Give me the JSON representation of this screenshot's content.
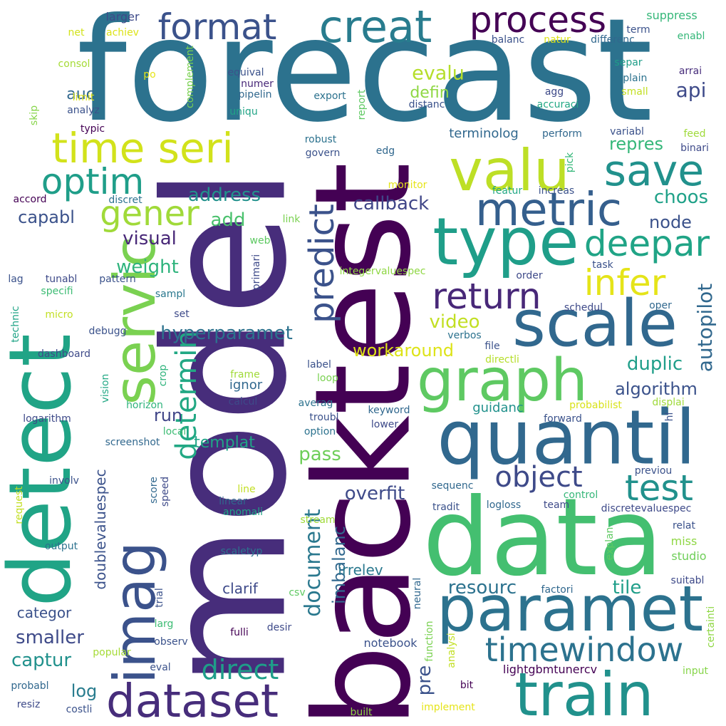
{
  "words": [
    {
      "text": "forecast",
      "color": "#2c728e"
    },
    {
      "text": "model",
      "color": "#472d7b"
    },
    {
      "text": "backtest",
      "color": "#440154"
    },
    {
      "text": "data",
      "color": "#44bf70"
    },
    {
      "text": "detect",
      "color": "#20a486"
    },
    {
      "text": "imag",
      "color": "#3b528b"
    },
    {
      "text": "servic",
      "color": "#7ad151"
    },
    {
      "text": "quantil",
      "color": "#31688e"
    },
    {
      "text": "paramet",
      "color": "#2c728e"
    },
    {
      "text": "type",
      "color": "#1f9e89"
    },
    {
      "text": "scale",
      "color": "#31688e"
    },
    {
      "text": "graph",
      "color": "#5ec962"
    },
    {
      "text": "train",
      "color": "#21918c"
    },
    {
      "text": "valu",
      "color": "#bddf26"
    },
    {
      "text": "metric",
      "color": "#355f8d"
    },
    {
      "text": "creat",
      "color": "#287c8e"
    },
    {
      "text": "time seri",
      "color": "#d2e21b"
    },
    {
      "text": "dataset",
      "color": "#472d7b"
    },
    {
      "text": "process",
      "color": "#440154"
    },
    {
      "text": "format",
      "color": "#3b528b"
    },
    {
      "text": "save",
      "color": "#21918c"
    },
    {
      "text": "optim",
      "color": "#1f9e89"
    },
    {
      "text": "gener",
      "color": "#a0da39"
    },
    {
      "text": "deepar",
      "color": "#20a486"
    },
    {
      "text": "timewindow",
      "color": "#2c728e"
    },
    {
      "text": "predict",
      "color": "#3b528b"
    },
    {
      "text": "determin",
      "color": "#22a884"
    },
    {
      "text": "infer",
      "color": "#e5e419"
    },
    {
      "text": "return",
      "color": "#482878"
    },
    {
      "text": "test",
      "color": "#21918c"
    },
    {
      "text": "object",
      "color": "#3e4a89"
    },
    {
      "text": "direct",
      "color": "#1f9e89"
    },
    {
      "text": "document",
      "color": "#2a788e"
    },
    {
      "text": "autopilot",
      "color": "#31688e"
    },
    {
      "text": "evalu",
      "color": "#b5de2b"
    },
    {
      "text": "api",
      "color": "#3e4a89"
    },
    {
      "text": "defin",
      "color": "#8fd744"
    },
    {
      "text": "auc",
      "color": "#31688e"
    },
    {
      "text": "repres",
      "color": "#35b779"
    },
    {
      "text": "choos",
      "color": "#1fa188"
    },
    {
      "text": "node",
      "color": "#3b528b"
    },
    {
      "text": "address",
      "color": "#21918c"
    },
    {
      "text": "capabl",
      "color": "#3b528b"
    },
    {
      "text": "add",
      "color": "#4ac16d"
    },
    {
      "text": "callback",
      "color": "#404688"
    },
    {
      "text": "visual",
      "color": "#482878"
    },
    {
      "text": "weight",
      "color": "#2eb37c"
    },
    {
      "text": "hyperparamet",
      "color": "#2c728e"
    },
    {
      "text": "video",
      "color": "#c2df23"
    },
    {
      "text": "workaround",
      "color": "#dde318"
    },
    {
      "text": "duplic",
      "color": "#1f9e89"
    },
    {
      "text": "algorithm",
      "color": "#3b528b"
    },
    {
      "text": "overfit",
      "color": "#3e4a89"
    },
    {
      "text": "imbalanc",
      "color": "#31688e"
    },
    {
      "text": "pass",
      "color": "#6ece58"
    },
    {
      "text": "resourc",
      "color": "#2c728e"
    },
    {
      "text": "tile",
      "color": "#1f9e89"
    },
    {
      "text": "pre",
      "color": "#3b528b"
    },
    {
      "text": "run",
      "color": "#404688"
    },
    {
      "text": "templat",
      "color": "#20a486"
    },
    {
      "text": "doublevaluespec",
      "color": "#3b528b"
    },
    {
      "text": "smaller",
      "color": "#3e4a89"
    },
    {
      "text": "captur",
      "color": "#21918c"
    },
    {
      "text": "log",
      "color": "#287c8e"
    },
    {
      "text": "categor",
      "color": "#3b528b"
    },
    {
      "text": "clarif",
      "color": "#3e4a89"
    },
    {
      "text": "irrelev",
      "color": "#2a788e"
    },
    {
      "text": "guidanc",
      "color": "#21918c"
    },
    {
      "text": "terminolog",
      "color": "#31688e"
    },
    {
      "text": "lightgbmtunercv",
      "color": "#440154"
    },
    {
      "text": "notebook",
      "color": "#3b528b"
    },
    {
      "text": "suppress",
      "color": "#35b779"
    },
    {
      "text": "larger",
      "color": "#3e4a89"
    },
    {
      "text": "net",
      "color": "#d2e21b"
    },
    {
      "text": "achiev",
      "color": "#dde318"
    },
    {
      "text": "consol",
      "color": "#a5db36"
    },
    {
      "text": "po",
      "color": "#e5e419"
    },
    {
      "text": "limit",
      "color": "#dde318"
    },
    {
      "text": "analyz",
      "color": "#3b528b"
    },
    {
      "text": "skip",
      "color": "#86d549"
    },
    {
      "text": "typic",
      "color": "#440154"
    },
    {
      "text": "complement",
      "color": "#7ad151"
    },
    {
      "text": "equival",
      "color": "#3b528b"
    },
    {
      "text": "numer",
      "color": "#482878"
    },
    {
      "text": "pipelin",
      "color": "#31688e"
    },
    {
      "text": "uniqu",
      "color": "#20a486"
    },
    {
      "text": "report",
      "color": "#5ec962"
    },
    {
      "text": "export",
      "color": "#2c728e"
    },
    {
      "text": "distanc",
      "color": "#3b528b"
    },
    {
      "text": "agg",
      "color": "#3e4a89"
    },
    {
      "text": "accuraci",
      "color": "#22a884"
    },
    {
      "text": "explain",
      "color": "#2c728e"
    },
    {
      "text": "small",
      "color": "#c2df23"
    },
    {
      "text": "separ",
      "color": "#1f9e89"
    },
    {
      "text": "arrai",
      "color": "#472d7b"
    },
    {
      "text": "term",
      "color": "#3b528b"
    },
    {
      "text": "enabl",
      "color": "#35b779"
    },
    {
      "text": "balanc",
      "color": "#3b528b"
    },
    {
      "text": "natur",
      "color": "#dde318"
    },
    {
      "text": "differenc",
      "color": "#31688e"
    },
    {
      "text": "robust",
      "color": "#2c728e"
    },
    {
      "text": "govern",
      "color": "#3b528b"
    },
    {
      "text": "edg",
      "color": "#31688e"
    },
    {
      "text": "perform",
      "color": "#31688e"
    },
    {
      "text": "variabl",
      "color": "#3b528b"
    },
    {
      "text": "feed",
      "color": "#9fda3a"
    },
    {
      "text": "binari",
      "color": "#3e4a89"
    },
    {
      "text": "pick",
      "color": "#35b779"
    },
    {
      "text": "accord",
      "color": "#440154"
    },
    {
      "text": "discret",
      "color": "#2c728e"
    },
    {
      "text": "monitor",
      "color": "#e5e419"
    },
    {
      "text": "featur",
      "color": "#22a884"
    },
    {
      "text": "increas",
      "color": "#3b528b"
    },
    {
      "text": "link",
      "color": "#7ad151"
    },
    {
      "text": "web",
      "color": "#5ec962"
    },
    {
      "text": "primari",
      "color": "#3e4a89"
    },
    {
      "text": "integervaluespec",
      "color": "#8fd744"
    },
    {
      "text": "task",
      "color": "#3b528b"
    },
    {
      "text": "order",
      "color": "#3e4a89"
    },
    {
      "text": "lag",
      "color": "#3b528b"
    },
    {
      "text": "tunabl",
      "color": "#3e4a89"
    },
    {
      "text": "pattern",
      "color": "#3b528b"
    },
    {
      "text": "specifi",
      "color": "#3dbc74"
    },
    {
      "text": "sampl",
      "color": "#2a788e"
    },
    {
      "text": "technic",
      "color": "#20a486"
    },
    {
      "text": "micro",
      "color": "#c2df23"
    },
    {
      "text": "set",
      "color": "#3e4a89"
    },
    {
      "text": "debugg",
      "color": "#3b528b"
    },
    {
      "text": "schedul",
      "color": "#3e4a89"
    },
    {
      "text": "oper",
      "color": "#31688e"
    },
    {
      "text": "verbos",
      "color": "#2c728e"
    },
    {
      "text": "file",
      "color": "#3b528b"
    },
    {
      "text": "directli",
      "color": "#b5de2b"
    },
    {
      "text": "dashboard",
      "color": "#3e4a89"
    },
    {
      "text": "label",
      "color": "#3b528b"
    },
    {
      "text": "loop",
      "color": "#7ad151"
    },
    {
      "text": "vision",
      "color": "#22a884"
    },
    {
      "text": "crop",
      "color": "#2eb37c"
    },
    {
      "text": "frame",
      "color": "#a0da39"
    },
    {
      "text": "ignor",
      "color": "#31688e"
    },
    {
      "text": "calcul",
      "color": "#3e4a89"
    },
    {
      "text": "averag",
      "color": "#2c728e"
    },
    {
      "text": "horizon",
      "color": "#2eb37c"
    },
    {
      "text": "probabilist",
      "color": "#d8e219"
    },
    {
      "text": "displai",
      "color": "#9fda3a"
    },
    {
      "text": "hl",
      "color": "#3b528b"
    },
    {
      "text": "logarithm",
      "color": "#3e4a89"
    },
    {
      "text": "troubl",
      "color": "#3b528b"
    },
    {
      "text": "keyword",
      "color": "#31688e"
    },
    {
      "text": "forward",
      "color": "#3b528b"
    },
    {
      "text": "local",
      "color": "#3dbc74"
    },
    {
      "text": "lower",
      "color": "#3e4a89"
    },
    {
      "text": "option",
      "color": "#2c728e"
    },
    {
      "text": "screenshot",
      "color": "#31688e"
    },
    {
      "text": "involv",
      "color": "#3b528b"
    },
    {
      "text": "score",
      "color": "#31688e"
    },
    {
      "text": "speed",
      "color": "#3e4a89"
    },
    {
      "text": "sequenc",
      "color": "#31688e"
    },
    {
      "text": "previou",
      "color": "#3b528b"
    },
    {
      "text": "line",
      "color": "#c2df23"
    },
    {
      "text": "linear",
      "color": "#31688e"
    },
    {
      "text": "anomali",
      "color": "#20a486"
    },
    {
      "text": "control",
      "color": "#35b779"
    },
    {
      "text": "tradit",
      "color": "#3b528b"
    },
    {
      "text": "logloss",
      "color": "#31688e"
    },
    {
      "text": "team",
      "color": "#3e4a89"
    },
    {
      "text": "discretevaluespec",
      "color": "#3e4a89"
    },
    {
      "text": "request",
      "color": "#c2df23"
    },
    {
      "text": "stream",
      "color": "#a0da39"
    },
    {
      "text": "relat",
      "color": "#3b528b"
    },
    {
      "text": "explan",
      "color": "#5ec962"
    },
    {
      "text": "miss",
      "color": "#8fd744"
    },
    {
      "text": "output",
      "color": "#2c728e"
    },
    {
      "text": "scaletyp",
      "color": "#2c728e"
    },
    {
      "text": "studio",
      "color": "#6ece58"
    },
    {
      "text": "suitabl",
      "color": "#3e4a89"
    },
    {
      "text": "factori",
      "color": "#31688e"
    },
    {
      "text": "trial",
      "color": "#3b528b"
    },
    {
      "text": "csv",
      "color": "#5ec962"
    },
    {
      "text": "neural",
      "color": "#31688e"
    },
    {
      "text": "larg",
      "color": "#3dbc74"
    },
    {
      "text": "observ",
      "color": "#3b528b"
    },
    {
      "text": "fulli",
      "color": "#440154"
    },
    {
      "text": "desir",
      "color": "#3e4a89"
    },
    {
      "text": "function",
      "color": "#7ad151"
    },
    {
      "text": "analysi",
      "color": "#c2df23"
    },
    {
      "text": "certainti",
      "color": "#8fd744"
    },
    {
      "text": "popular",
      "color": "#a5db36"
    },
    {
      "text": "eval",
      "color": "#3b528b"
    },
    {
      "text": "input",
      "color": "#86d549"
    },
    {
      "text": "probabl",
      "color": "#31688e"
    },
    {
      "text": "bit",
      "color": "#440154"
    },
    {
      "text": "resiz",
      "color": "#3e4a89"
    },
    {
      "text": "costli",
      "color": "#3b528b"
    },
    {
      "text": "built",
      "color": "#8fd744"
    },
    {
      "text": "implement",
      "color": "#e5e419"
    }
  ]
}
